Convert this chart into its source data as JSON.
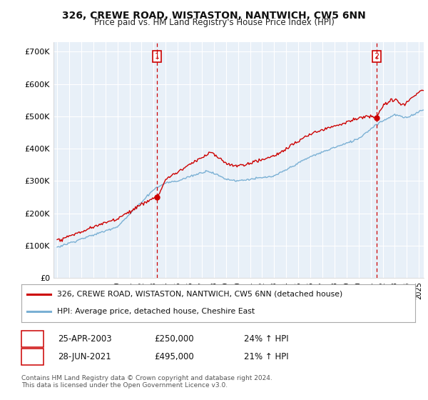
{
  "title": "326, CREWE ROAD, WISTASTON, NANTWICH, CW5 6NN",
  "subtitle": "Price paid vs. HM Land Registry's House Price Index (HPI)",
  "ylabel_ticks": [
    "£0",
    "£100K",
    "£200K",
    "£300K",
    "£400K",
    "£500K",
    "£600K",
    "£700K"
  ],
  "ytick_values": [
    0,
    100000,
    200000,
    300000,
    400000,
    500000,
    600000,
    700000
  ],
  "ylim": [
    0,
    730000
  ],
  "xlim_start": 1994.7,
  "xlim_end": 2025.4,
  "transaction1_x": 2003.29,
  "transaction1_y": 250000,
  "transaction1_label": "1",
  "transaction2_x": 2021.49,
  "transaction2_y": 495000,
  "transaction2_label": "2",
  "hpi_color": "#7ab0d4",
  "price_color": "#cc0000",
  "vline_color": "#cc0000",
  "plot_bg_color": "#e8f0f8",
  "bg_color": "#ffffff",
  "grid_color": "#ffffff",
  "legend_label1": "326, CREWE ROAD, WISTASTON, NANTWICH, CW5 6NN (detached house)",
  "legend_label2": "HPI: Average price, detached house, Cheshire East",
  "annotation1_date": "25-APR-2003",
  "annotation1_price": "£250,000",
  "annotation1_hpi": "24% ↑ HPI",
  "annotation2_date": "28-JUN-2021",
  "annotation2_price": "£495,000",
  "annotation2_hpi": "21% ↑ HPI",
  "footer": "Contains HM Land Registry data © Crown copyright and database right 2024.\nThis data is licensed under the Open Government Licence v3.0."
}
